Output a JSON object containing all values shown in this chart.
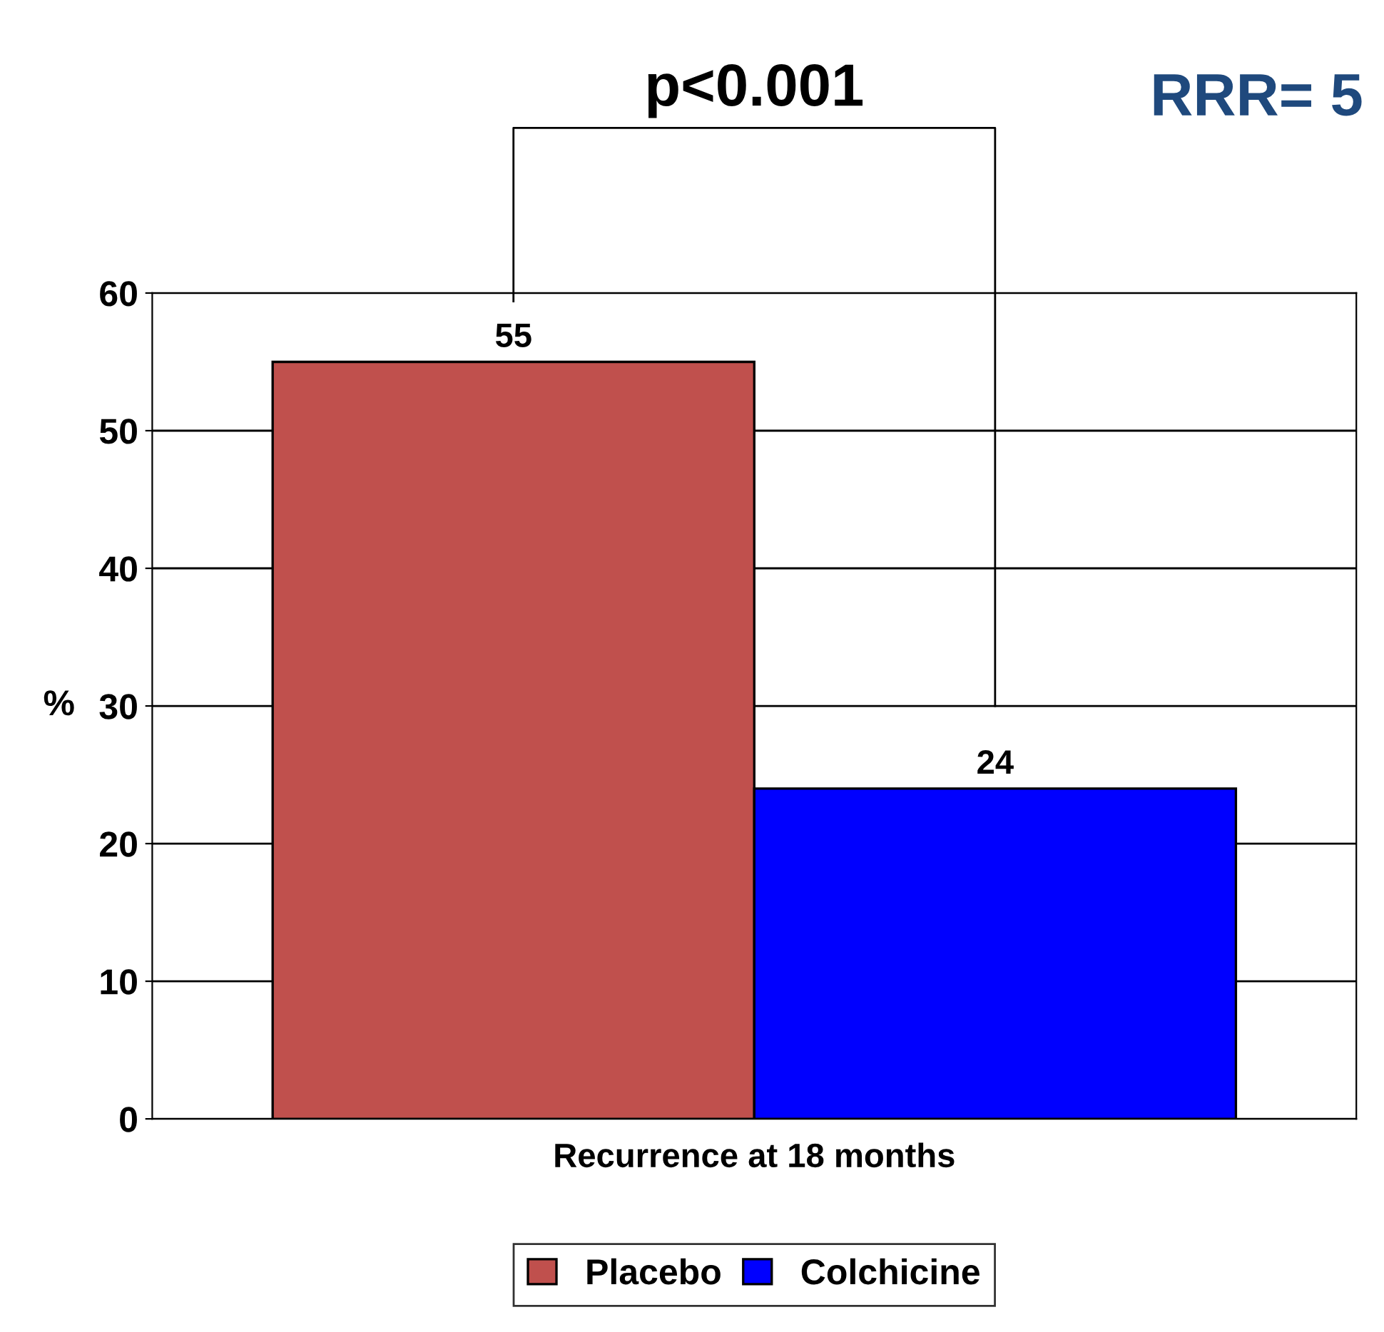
{
  "chart_data": {
    "type": "bar",
    "categories": [
      "Recurrence at 18 months"
    ],
    "series": [
      {
        "name": "Placebo",
        "color": "#c0504d",
        "values": [
          55
        ]
      },
      {
        "name": "Colchicine",
        "color": "#0000ff",
        "values": [
          24
        ]
      }
    ],
    "ylabel": "%",
    "ylim": [
      0,
      60
    ],
    "yticks": [
      0,
      10,
      20,
      30,
      40,
      50,
      60
    ],
    "grid": "y",
    "legend": "bottom",
    "data_labels": true,
    "annotations": [
      "p<0.001",
      "RRR= 5"
    ]
  }
}
